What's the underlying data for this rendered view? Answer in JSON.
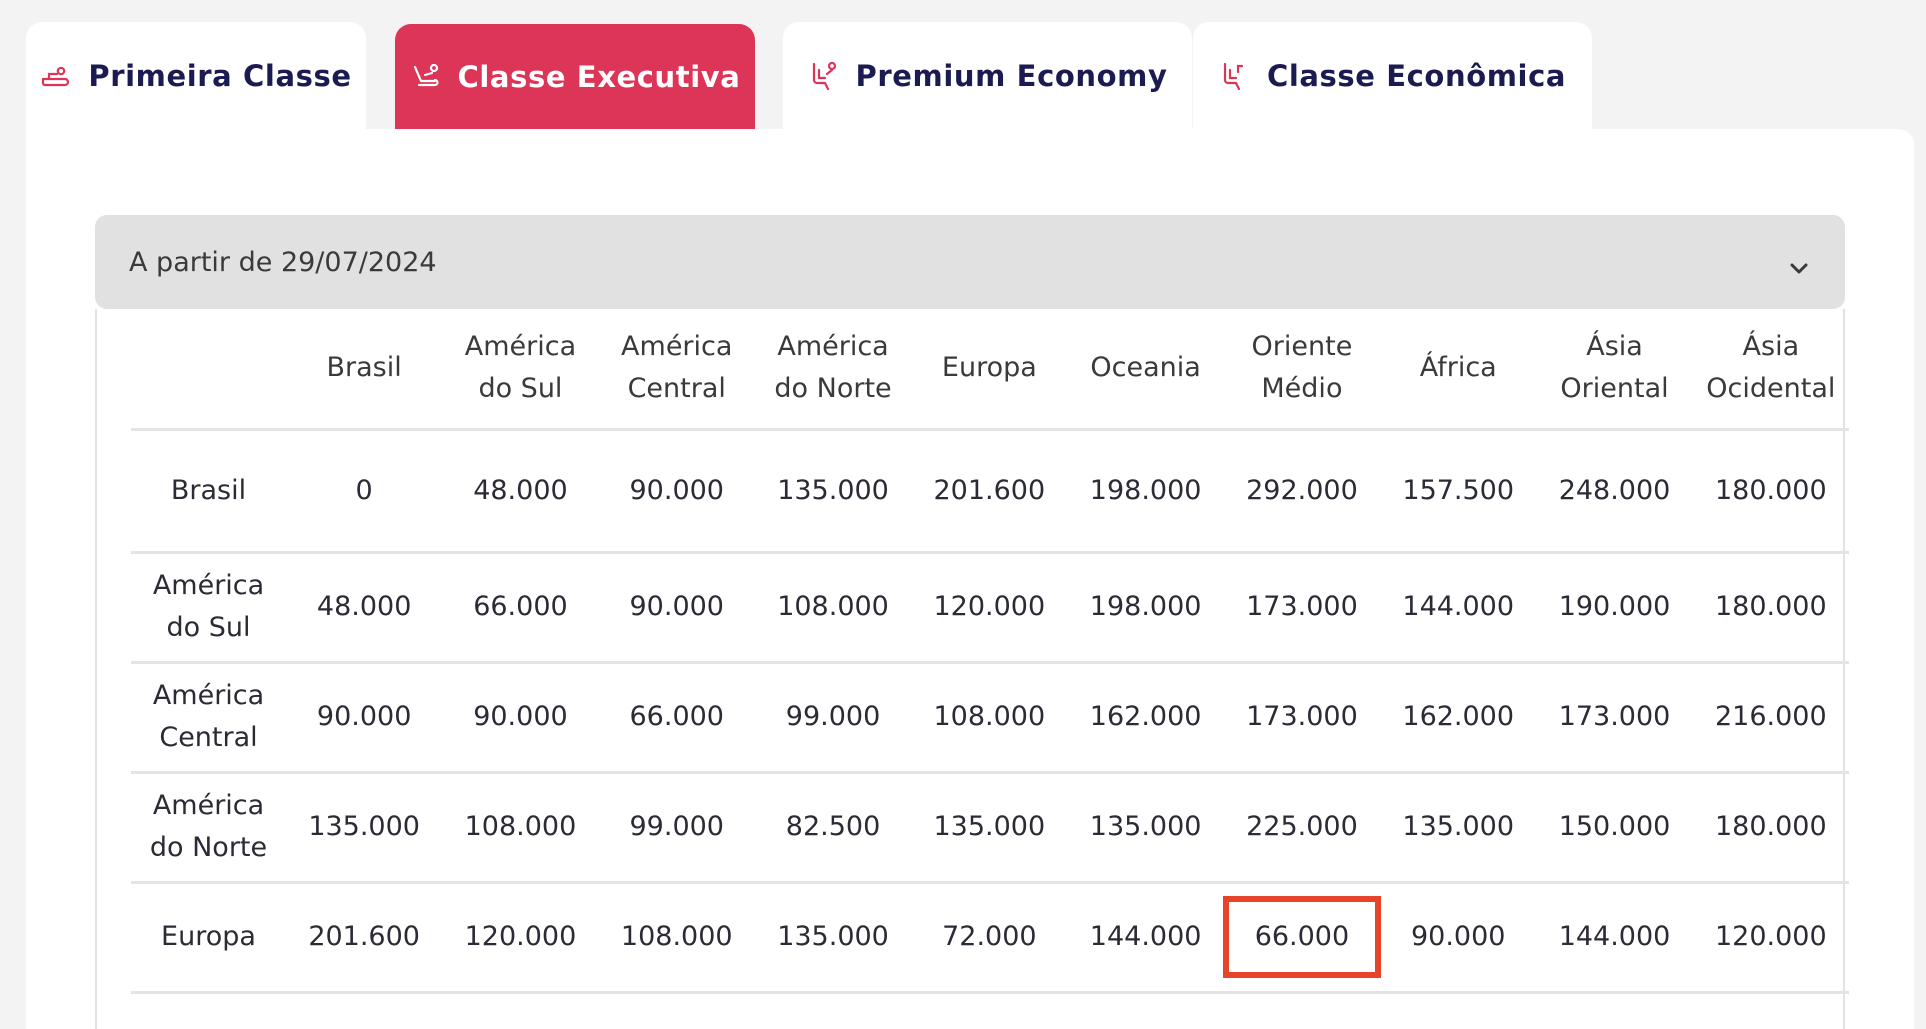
{
  "tabs": [
    {
      "label": "Primeira Classe",
      "icon": "flat-seat-icon",
      "active": false
    },
    {
      "label": "Classe Executiva",
      "icon": "recline-seat-icon",
      "active": true
    },
    {
      "label": "Premium Economy",
      "icon": "premium-seat-icon",
      "active": false
    },
    {
      "label": "Classe Econômica",
      "icon": "economy-seat-icon",
      "active": false
    }
  ],
  "accordion": {
    "label": "A partir de 29/07/2024",
    "icon": "chevron-down-icon"
  },
  "table": {
    "columns": [
      "",
      "Brasil",
      "América do Sul",
      "América Central",
      "América do Norte",
      "Europa",
      "Oceania",
      "Oriente Médio",
      "África",
      "Ásia Oriental",
      "Ásia Ocidental"
    ],
    "rows": [
      {
        "region": "Brasil",
        "values": [
          "0",
          "48.000",
          "90.000",
          "135.000",
          "201.600",
          "198.000",
          "292.000",
          "157.500",
          "248.000",
          "180.000"
        ]
      },
      {
        "region": "América do Sul",
        "values": [
          "48.000",
          "66.000",
          "90.000",
          "108.000",
          "120.000",
          "198.000",
          "173.000",
          "144.000",
          "190.000",
          "180.000"
        ]
      },
      {
        "region": "América Central",
        "values": [
          "90.000",
          "90.000",
          "66.000",
          "99.000",
          "108.000",
          "162.000",
          "173.000",
          "162.000",
          "173.000",
          "216.000"
        ]
      },
      {
        "region": "América do Norte",
        "values": [
          "135.000",
          "108.000",
          "99.000",
          "82.500",
          "135.000",
          "135.000",
          "225.000",
          "135.000",
          "150.000",
          "180.000"
        ]
      },
      {
        "region": "Europa",
        "values": [
          "201.600",
          "120.000",
          "108.000",
          "135.000",
          "72.000",
          "144.000",
          "66.000",
          "90.000",
          "144.000",
          "120.000"
        ]
      }
    ],
    "highlight": {
      "row": 4,
      "col": 6,
      "color": "#e8442a"
    }
  },
  "colors": {
    "accent": "#dc3558",
    "tab_text": "#1b1b52",
    "background": "#f3f3f3",
    "accordion_bg": "#e1e1e1"
  }
}
